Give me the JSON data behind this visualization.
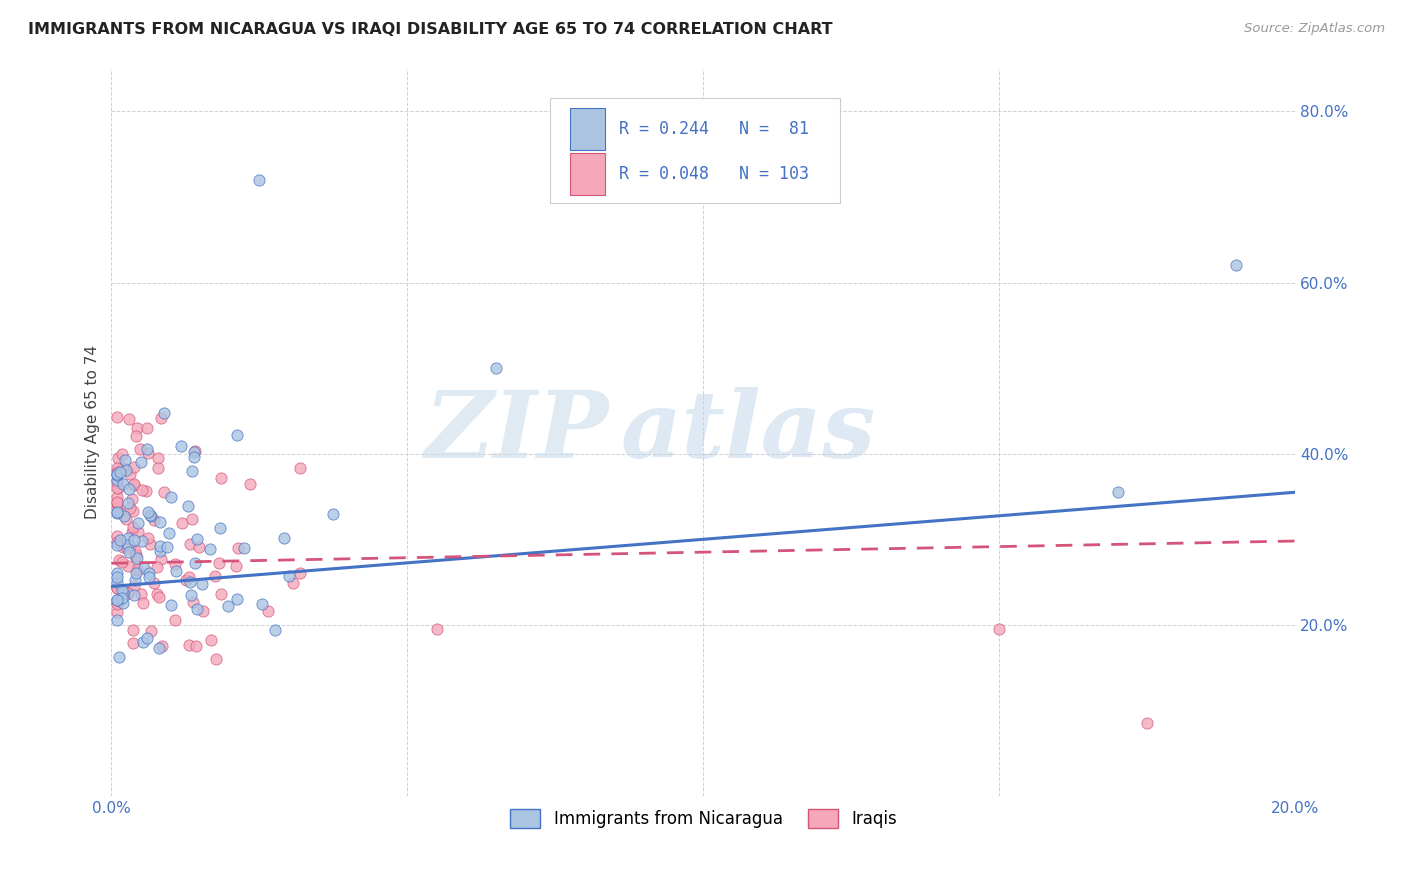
{
  "title": "IMMIGRANTS FROM NICARAGUA VS IRAQI DISABILITY AGE 65 TO 74 CORRELATION CHART",
  "source": "Source: ZipAtlas.com",
  "ylabel": "Disability Age 65 to 74",
  "xlim": [
    0.0,
    0.2
  ],
  "ylim": [
    0.0,
    0.85
  ],
  "xtick_vals": [
    0.0,
    0.05,
    0.1,
    0.15,
    0.2
  ],
  "xtick_labels": [
    "0.0%",
    "",
    "",
    "",
    "20.0%"
  ],
  "ytick_vals": [
    0.2,
    0.4,
    0.6,
    0.8
  ],
  "ytick_labels": [
    "20.0%",
    "40.0%",
    "60.0%",
    "80.0%"
  ],
  "watermark_zip": "ZIP",
  "watermark_atlas": "atlas",
  "color_nicaragua": "#aac4e2",
  "color_iraq": "#f4a8ba",
  "color_line_nicaragua": "#4472c4",
  "color_line_iraq": "#d4547a",
  "color_text_blue": "#4472c4",
  "background_color": "#ffffff",
  "r_nic": 0.244,
  "n_nic": 81,
  "r_iraq": 0.048,
  "n_iraq": 103,
  "nic_line_x0": 0.0,
  "nic_line_y0": 0.245,
  "nic_line_x1": 0.2,
  "nic_line_y1": 0.355,
  "iraq_line_x0": 0.0,
  "iraq_line_y0": 0.272,
  "iraq_line_x1": 0.2,
  "iraq_line_y1": 0.298
}
